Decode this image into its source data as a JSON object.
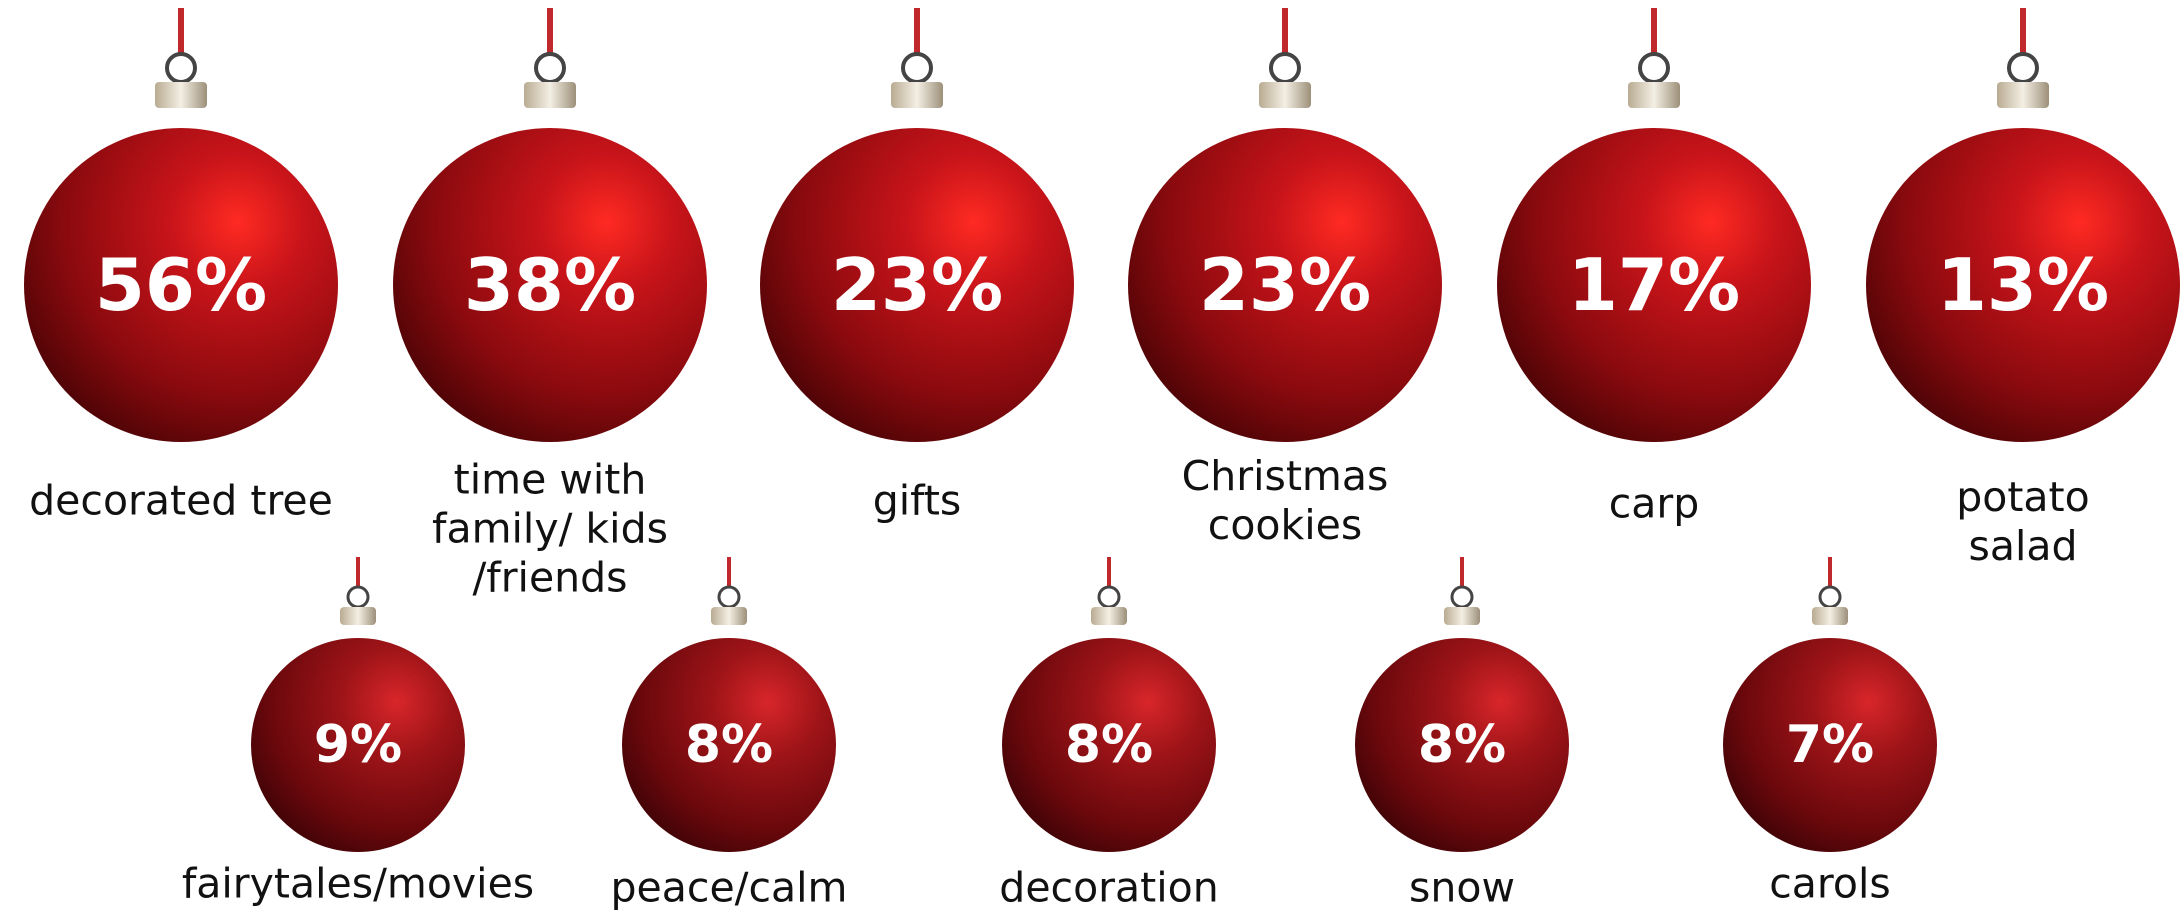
{
  "items": [
    {
      "value": "56%",
      "label": "decorated tree"
    },
    {
      "value": "38%",
      "label": "time with\nfamily/ kids\n/friends"
    },
    {
      "value": "23%",
      "label": "gifts"
    },
    {
      "value": "23%",
      "label": "Christmas\ncookies"
    },
    {
      "value": "17%",
      "label": "carp"
    },
    {
      "value": "13%",
      "label": "potato salad"
    },
    {
      "value": "9%",
      "label": "fairytales/movies"
    },
    {
      "value": "8%",
      "label": "peace/calm"
    },
    {
      "value": "8%",
      "label": "decoration"
    },
    {
      "value": "8%",
      "label": "snow"
    },
    {
      "value": "7%",
      "label": "carols"
    }
  ]
}
